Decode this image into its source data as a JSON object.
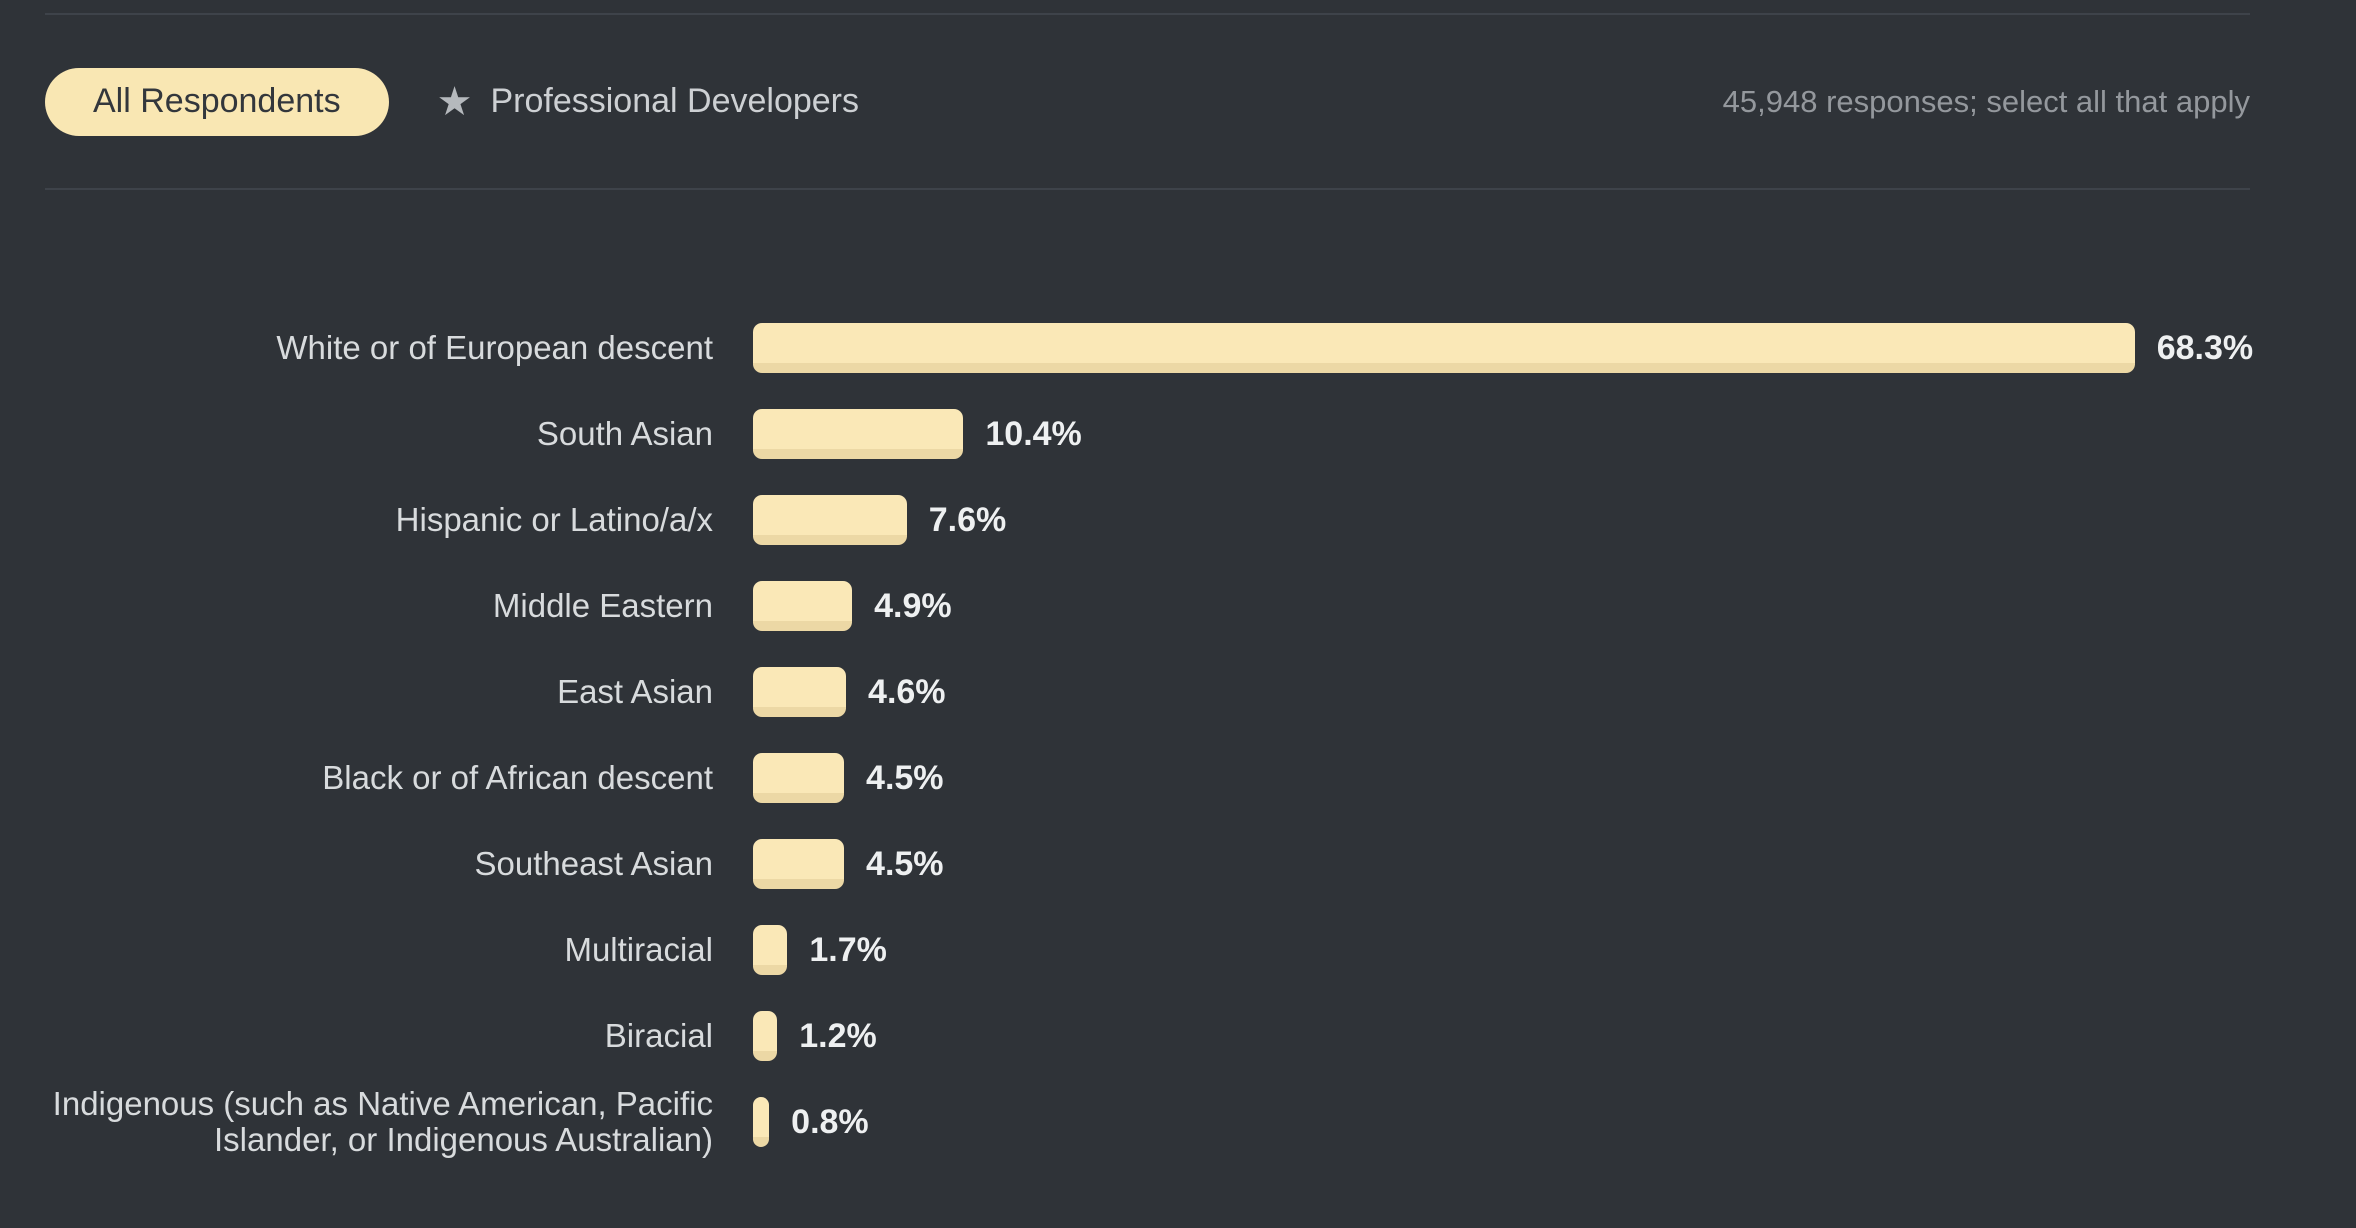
{
  "theme": {
    "background": "#2f3338",
    "divider": "#3e434a",
    "accent_cream": "#f9e7b3",
    "bar_fill": "#fae8b7",
    "bar_edge": "#ecd8a5",
    "label_text": "#d8dbdd",
    "value_text": "#eef0f1",
    "muted_text": "#94989d",
    "icon_gray": "#b5b9bd",
    "pill_text": "#33373c"
  },
  "header": {
    "tabs": [
      {
        "label": "All Respondents",
        "selected": true
      },
      {
        "label": "Professional Developers",
        "selected": false,
        "icon": "star-icon"
      }
    ],
    "responses_note": "45,948 responses; select all that apply"
  },
  "chart_data": {
    "type": "bar",
    "orientation": "horizontal",
    "categories": [
      "White or of European descent",
      "South Asian",
      "Hispanic or Latino/a/x",
      "Middle Eastern",
      "East Asian",
      "Black or of African descent",
      "Southeast Asian",
      "Multiracial",
      "Biracial",
      "Indigenous (such as Native American, Pacific Islander, or Indigenous Australian)"
    ],
    "values": [
      68.3,
      10.4,
      7.6,
      4.9,
      4.6,
      4.5,
      4.5,
      1.7,
      1.2,
      0.8
    ],
    "value_labels": [
      "68.3%",
      "10.4%",
      "7.6%",
      "4.9%",
      "4.6%",
      "4.5%",
      "4.5%",
      "1.7%",
      "1.2%",
      "0.8%"
    ],
    "xlim": [
      0,
      74
    ],
    "grid": false,
    "legend": false,
    "bar_color": "#fae8b7",
    "bar_edge_color": "#ecd8a5"
  }
}
